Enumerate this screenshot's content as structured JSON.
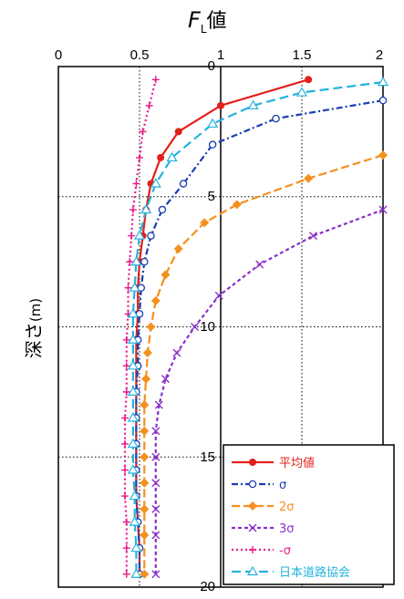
{
  "chart_data": {
    "type": "line",
    "title_main": "F",
    "title_sub": "L",
    "title_suffix": "値",
    "ylabel_text": "深さ",
    "ylabel_unit": "(m)",
    "xlim": [
      0,
      2
    ],
    "ylim": [
      0,
      20
    ],
    "y_inverted": true,
    "grid": true,
    "legend_position": "bottom-right",
    "x_ticks": [
      "0",
      "0.5",
      "1",
      "1.5",
      "2"
    ],
    "y_ticks": [
      "0",
      "5",
      "10",
      "15",
      "20"
    ],
    "series": [
      {
        "name": "平均値",
        "color": "#e3201b",
        "marker": "dot",
        "dash": "",
        "points": [
          [
            1.54,
            0.5
          ],
          [
            1.0,
            1.5
          ],
          [
            0.74,
            2.5
          ],
          [
            0.63,
            3.5
          ],
          [
            0.57,
            4.5
          ],
          [
            0.54,
            5.5
          ],
          [
            0.52,
            6.5
          ],
          [
            0.5,
            7.5
          ],
          [
            0.49,
            8.5
          ],
          [
            0.49,
            9.5
          ],
          [
            0.48,
            10.5
          ],
          [
            0.48,
            11.5
          ],
          [
            0.48,
            12.5
          ],
          [
            0.48,
            13.5
          ],
          [
            0.48,
            14.5
          ],
          [
            0.48,
            15.5
          ],
          [
            0.48,
            16.5
          ],
          [
            0.49,
            17.5
          ],
          [
            0.5,
            18.5
          ],
          [
            0.5,
            19.5
          ]
        ]
      },
      {
        "name": "σ",
        "color": "#1a3fb0",
        "marker": "circle",
        "dash": "7,3,2,3",
        "points": [
          [
            2.0,
            1.3
          ],
          [
            1.34,
            2.0
          ],
          [
            0.95,
            3.0
          ],
          [
            0.77,
            4.5
          ],
          [
            0.64,
            5.5
          ],
          [
            0.57,
            6.5
          ],
          [
            0.53,
            7.5
          ],
          [
            0.51,
            8.5
          ],
          [
            0.5,
            9.5
          ],
          [
            0.49,
            10.5
          ],
          [
            0.49,
            11.5
          ],
          [
            0.48,
            12.5
          ],
          [
            0.48,
            13.5
          ],
          [
            0.48,
            14.5
          ],
          [
            0.48,
            15.5
          ],
          [
            0.48,
            16.5
          ],
          [
            0.49,
            17.5
          ],
          [
            0.5,
            18.5
          ],
          [
            0.5,
            19.5
          ]
        ]
      },
      {
        "name": "2σ",
        "color": "#f5901e",
        "marker": "diamond",
        "dash": "9,4",
        "points": [
          [
            2.0,
            3.4
          ],
          [
            1.54,
            4.3
          ],
          [
            1.1,
            5.3
          ],
          [
            0.9,
            6.0
          ],
          [
            0.74,
            7.0
          ],
          [
            0.66,
            8.0
          ],
          [
            0.6,
            9.0
          ],
          [
            0.57,
            10.0
          ],
          [
            0.55,
            11.0
          ],
          [
            0.54,
            12.0
          ],
          [
            0.53,
            13.0
          ],
          [
            0.53,
            14.0
          ],
          [
            0.53,
            15.0
          ],
          [
            0.53,
            16.0
          ],
          [
            0.53,
            17.0
          ],
          [
            0.53,
            18.0
          ],
          [
            0.53,
            19.5
          ]
        ]
      },
      {
        "name": "3σ",
        "color": "#8b2fc9",
        "marker": "x",
        "dash": "4,3",
        "points": [
          [
            2.0,
            5.5
          ],
          [
            1.57,
            6.5
          ],
          [
            1.24,
            7.6
          ],
          [
            0.99,
            8.8
          ],
          [
            0.84,
            10.0
          ],
          [
            0.73,
            11.0
          ],
          [
            0.66,
            12.0
          ],
          [
            0.62,
            13.0
          ],
          [
            0.6,
            14.0
          ],
          [
            0.6,
            15.0
          ],
          [
            0.6,
            16.0
          ],
          [
            0.6,
            17.0
          ],
          [
            0.6,
            18.0
          ],
          [
            0.6,
            19.5
          ]
        ]
      },
      {
        "name": "-σ",
        "color": "#e8198b",
        "marker": "plus",
        "dash": "2,3",
        "points": [
          [
            0.6,
            0.5
          ],
          [
            0.56,
            1.5
          ],
          [
            0.52,
            2.5
          ],
          [
            0.5,
            3.5
          ],
          [
            0.48,
            4.5
          ],
          [
            0.46,
            5.5
          ],
          [
            0.45,
            6.5
          ],
          [
            0.44,
            7.5
          ],
          [
            0.43,
            8.5
          ],
          [
            0.43,
            9.5
          ],
          [
            0.42,
            10.5
          ],
          [
            0.42,
            11.5
          ],
          [
            0.42,
            12.5
          ],
          [
            0.41,
            13.5
          ],
          [
            0.41,
            14.5
          ],
          [
            0.41,
            15.5
          ],
          [
            0.41,
            16.5
          ],
          [
            0.42,
            17.5
          ],
          [
            0.42,
            18.5
          ],
          [
            0.42,
            19.5
          ]
        ]
      },
      {
        "name": "日本道路協会",
        "color": "#23b3dc",
        "marker": "triangle",
        "dash": "10,5",
        "points": [
          [
            2.0,
            0.6
          ],
          [
            1.5,
            1.0
          ],
          [
            1.2,
            1.5
          ],
          [
            0.95,
            2.2
          ],
          [
            0.7,
            3.5
          ],
          [
            0.6,
            4.5
          ],
          [
            0.54,
            5.5
          ],
          [
            0.5,
            6.5
          ],
          [
            0.48,
            7.5
          ],
          [
            0.47,
            8.5
          ],
          [
            0.46,
            9.5
          ],
          [
            0.46,
            10.5
          ],
          [
            0.46,
            11.5
          ],
          [
            0.46,
            12.5
          ],
          [
            0.46,
            13.5
          ],
          [
            0.46,
            14.5
          ],
          [
            0.46,
            15.5
          ],
          [
            0.47,
            16.5
          ],
          [
            0.47,
            17.5
          ],
          [
            0.48,
            18.5
          ],
          [
            0.48,
            19.5
          ]
        ]
      }
    ]
  }
}
